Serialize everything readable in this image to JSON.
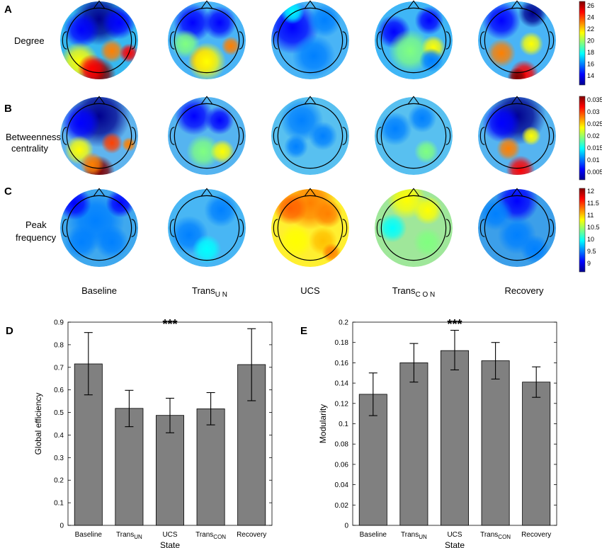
{
  "panels": {
    "a": "A",
    "b": "B",
    "c": "C",
    "d": "D",
    "e": "E"
  },
  "row_labels": {
    "degree": "Degree",
    "betweenness_1": "Betweenness",
    "betweenness_2": "centrality",
    "peak_1": "Peak",
    "peak_2": "frequency"
  },
  "state_labels": [
    {
      "base": "Baseline",
      "sub": ""
    },
    {
      "base": "Trans",
      "sub": "U N"
    },
    {
      "base": "UCS",
      "sub": ""
    },
    {
      "base": "Trans",
      "sub": "C O N"
    },
    {
      "base": "Recovery",
      "sub": ""
    }
  ],
  "colorbars": [
    {
      "ticks": [
        "26",
        "24",
        "22",
        "20",
        "18",
        "16",
        "14"
      ]
    },
    {
      "ticks": [
        "0.035",
        "0.03",
        "0.025",
        "0.02",
        "0.015",
        "0.01",
        "0.005"
      ]
    },
    {
      "ticks": [
        "12",
        "11.5",
        "11",
        "10.5",
        "10",
        "9.5",
        "9"
      ]
    }
  ],
  "colors": {
    "bar_fill": "#808080",
    "jet": [
      "#00008f",
      "#0000ff",
      "#0080ff",
      "#00ffff",
      "#80ff80",
      "#ffff00",
      "#ff8000",
      "#ff0000",
      "#800000"
    ]
  },
  "chart_data": [
    {
      "type": "bar",
      "panel": "D",
      "categories": [
        {
          "base": "Baseline",
          "sub": ""
        },
        {
          "base": "Trans",
          "sub": "UN"
        },
        {
          "base": "UCS",
          "sub": ""
        },
        {
          "base": "Trans",
          "sub": "CON"
        },
        {
          "base": "Recovery",
          "sub": ""
        }
      ],
      "values": [
        0.715,
        0.518,
        0.487,
        0.516,
        0.712
      ],
      "err_low": [
        0.578,
        0.437,
        0.41,
        0.445,
        0.552
      ],
      "err_high": [
        0.854,
        0.598,
        0.563,
        0.588,
        0.871
      ],
      "ylim": [
        0,
        0.9
      ],
      "yticks": [
        "0",
        "0.1",
        "0.2",
        "0.3",
        "0.4",
        "0.5",
        "0.6",
        "0.7",
        "0.8",
        "0.9"
      ],
      "ylabel": "Global efficiency",
      "xlabel": "State",
      "annotation": "***",
      "annotation_index": 2
    },
    {
      "type": "bar",
      "panel": "E",
      "categories": [
        {
          "base": "Baseline",
          "sub": ""
        },
        {
          "base": "Trans",
          "sub": "UN"
        },
        {
          "base": "UCS",
          "sub": ""
        },
        {
          "base": "Trans",
          "sub": "CON"
        },
        {
          "base": "Recovery",
          "sub": ""
        }
      ],
      "values": [
        0.129,
        0.16,
        0.172,
        0.162,
        0.141
      ],
      "err_low": [
        0.108,
        0.141,
        0.153,
        0.144,
        0.126
      ],
      "err_high": [
        0.15,
        0.179,
        0.192,
        0.18,
        0.156
      ],
      "ylim": [
        0,
        0.2
      ],
      "yticks": [
        "0",
        "0.02",
        "0.04",
        "0.06",
        "0.08",
        "0.1",
        "0.12",
        "0.14",
        "0.16",
        "0.18",
        "0.2"
      ],
      "ylabel": "Modularity",
      "xlabel": "State",
      "annotation": "***",
      "annotation_index": 2
    }
  ]
}
